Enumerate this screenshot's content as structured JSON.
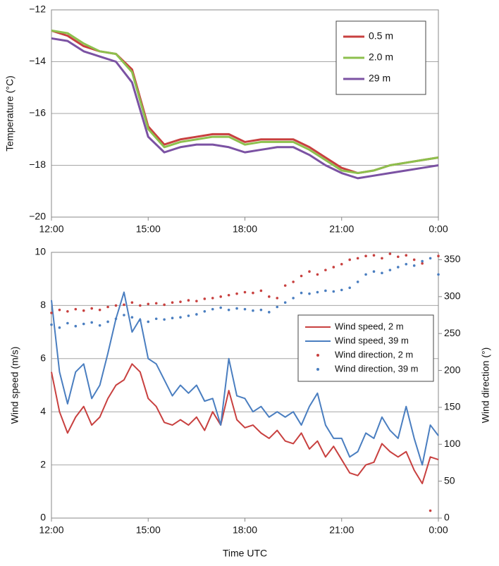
{
  "chart_data": [
    {
      "type": "line",
      "ylabel": "Temperature (°C)",
      "x": [
        12,
        12.5,
        13,
        13.5,
        14,
        14.5,
        15,
        15.5,
        16,
        16.5,
        17,
        17.5,
        18,
        18.5,
        19,
        19.5,
        20,
        20.5,
        21,
        21.5,
        22,
        22.5,
        23,
        23.5,
        24
      ],
      "series": [
        {
          "name": "0.5 m",
          "color": "#c8403f",
          "style": "line",
          "values": [
            -12.8,
            -13.0,
            -13.4,
            -13.6,
            -13.7,
            -14.3,
            -16.5,
            -17.2,
            -17.0,
            -16.9,
            -16.8,
            -16.8,
            -17.1,
            -17.0,
            -17.0,
            -17.0,
            -17.3,
            -17.7,
            -18.1,
            -18.3,
            -18.2,
            -18.0,
            -17.9,
            -17.8,
            -17.7
          ]
        },
        {
          "name": "2.0 m",
          "color": "#8dc04d",
          "style": "line",
          "values": [
            -12.8,
            -12.9,
            -13.3,
            -13.6,
            -13.7,
            -14.4,
            -16.6,
            -17.3,
            -17.1,
            -17.0,
            -16.9,
            -16.9,
            -17.2,
            -17.1,
            -17.1,
            -17.1,
            -17.4,
            -17.8,
            -18.2,
            -18.3,
            -18.2,
            -18.0,
            -17.9,
            -17.8,
            -17.7
          ]
        },
        {
          "name": "29 m",
          "color": "#7b52a3",
          "style": "line",
          "values": [
            -13.1,
            -13.2,
            -13.6,
            -13.8,
            -14.0,
            -14.8,
            -16.9,
            -17.5,
            -17.3,
            -17.2,
            -17.2,
            -17.3,
            -17.5,
            -17.4,
            -17.3,
            -17.3,
            -17.6,
            -18.0,
            -18.3,
            -18.5,
            -18.4,
            -18.3,
            -18.2,
            -18.1,
            -18.0
          ]
        }
      ],
      "xlim": [
        12,
        24
      ],
      "xticks": [
        {
          "value": 12,
          "label": "12:00"
        },
        {
          "value": 15,
          "label": "15:00"
        },
        {
          "value": 18,
          "label": "18:00"
        },
        {
          "value": 21,
          "label": "21:00"
        },
        {
          "value": 24,
          "label": "0:00"
        }
      ],
      "ylim": [
        -20,
        -12
      ],
      "yticks": [
        {
          "value": -20,
          "label": "−20"
        },
        {
          "value": -18,
          "label": "−18"
        },
        {
          "value": -16,
          "label": "−16"
        },
        {
          "value": -14,
          "label": "−14"
        },
        {
          "value": -12,
          "label": "−12"
        }
      ],
      "grid": true,
      "legend": "upper right"
    },
    {
      "type": "line",
      "xlabel": "Time UTC",
      "ylabel": "Wind speed (m/s)",
      "y2label": "Wind direction (°)",
      "x": [
        12,
        12.25,
        12.5,
        12.75,
        13,
        13.25,
        13.5,
        13.75,
        14,
        14.25,
        14.5,
        14.75,
        15,
        15.25,
        15.5,
        15.75,
        16,
        16.25,
        16.5,
        16.75,
        17,
        17.25,
        17.5,
        17.75,
        18,
        18.25,
        18.5,
        18.75,
        19,
        19.25,
        19.5,
        19.75,
        20,
        20.25,
        20.5,
        20.75,
        21,
        21.25,
        21.5,
        21.75,
        22,
        22.25,
        22.5,
        22.75,
        23,
        23.25,
        23.5,
        23.75,
        24
      ],
      "series": [
        {
          "name": "Wind speed, 2 m",
          "color": "#c8403f",
          "style": "line",
          "values": [
            5.5,
            4.0,
            3.2,
            3.8,
            4.2,
            3.5,
            3.8,
            4.5,
            5.0,
            5.2,
            5.8,
            5.5,
            4.5,
            4.2,
            3.6,
            3.5,
            3.7,
            3.5,
            3.8,
            3.3,
            4.0,
            3.5,
            4.8,
            3.7,
            3.4,
            3.5,
            3.2,
            3.0,
            3.3,
            2.9,
            2.8,
            3.2,
            2.6,
            2.9,
            2.3,
            2.7,
            2.2,
            1.7,
            1.6,
            2.0,
            2.1,
            2.8,
            2.5,
            2.3,
            2.5,
            1.8,
            1.3,
            2.3,
            2.2
          ]
        },
        {
          "name": "Wind speed, 39 m",
          "color": "#4a7ec0",
          "style": "line",
          "values": [
            8.2,
            5.5,
            4.3,
            5.5,
            5.8,
            4.5,
            5.0,
            6.2,
            7.5,
            8.5,
            7.0,
            7.5,
            6.0,
            5.8,
            5.2,
            4.6,
            5.0,
            4.7,
            5.0,
            4.4,
            4.5,
            3.5,
            6.0,
            4.6,
            4.5,
            4.0,
            4.2,
            3.8,
            4.0,
            3.8,
            4.0,
            3.5,
            4.2,
            4.7,
            3.5,
            3.0,
            3.0,
            2.3,
            2.5,
            3.2,
            3.0,
            3.8,
            3.3,
            3.0,
            4.2,
            3.0,
            2.0,
            3.5,
            3.1
          ]
        },
        {
          "name": "Wind direction, 2 m",
          "color": "#c8403f",
          "style": "points",
          "axis": "y2",
          "values": [
            278,
            282,
            280,
            283,
            281,
            284,
            282,
            286,
            288,
            289,
            292,
            288,
            290,
            291,
            289,
            292,
            293,
            295,
            294,
            297,
            298,
            300,
            302,
            304,
            306,
            305,
            308,
            300,
            298,
            315,
            320,
            328,
            334,
            330,
            336,
            340,
            344,
            350,
            352,
            355,
            356,
            352,
            358,
            354,
            356,
            350,
            345,
            10,
            355
          ]
        },
        {
          "name": "Wind direction, 39 m",
          "color": "#4a7ec0",
          "style": "points",
          "axis": "y2",
          "values": [
            262,
            258,
            264,
            260,
            263,
            265,
            261,
            266,
            270,
            275,
            272,
            268,
            266,
            270,
            269,
            271,
            272,
            274,
            276,
            280,
            283,
            285,
            282,
            284,
            283,
            281,
            282,
            279,
            286,
            292,
            298,
            305,
            304,
            306,
            308,
            307,
            309,
            312,
            320,
            330,
            334,
            332,
            336,
            340,
            344,
            342,
            348,
            352,
            330
          ]
        }
      ],
      "xlim": [
        12,
        24
      ],
      "xticks": [
        {
          "value": 12,
          "label": "12:00"
        },
        {
          "value": 15,
          "label": "15:00"
        },
        {
          "value": 18,
          "label": "18:00"
        },
        {
          "value": 21,
          "label": "21:00"
        },
        {
          "value": 24,
          "label": "0:00"
        }
      ],
      "ylim": [
        0,
        10
      ],
      "yticks": [
        0,
        2,
        4,
        6,
        8,
        10
      ],
      "y2lim": [
        0,
        360
      ],
      "y2ticks": [
        0,
        50,
        100,
        150,
        200,
        250,
        300,
        350
      ],
      "grid": true,
      "legend": "center right"
    }
  ]
}
